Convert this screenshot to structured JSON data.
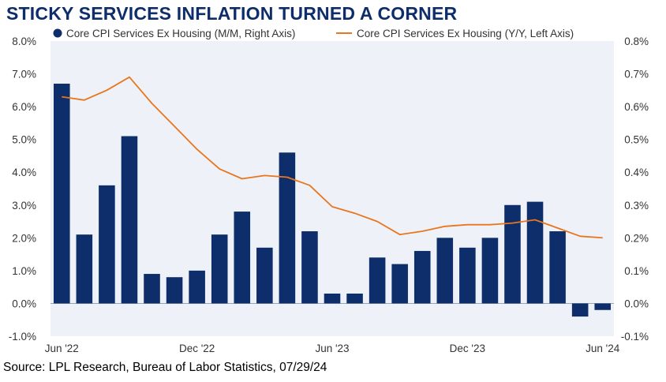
{
  "title": "STICKY SERVICES INFLATION TURNED A CORNER",
  "source": "Source: LPL Research, Bureau of Labor Statistics, 07/29/24",
  "colors": {
    "bar": "#0d2d6b",
    "line": "#e8761e",
    "title": "#0d2d6b",
    "plot_bg": "#eef2f8"
  },
  "chart_data": {
    "type": "bar",
    "x": [
      "Jun '22",
      "Jul '22",
      "Aug '22",
      "Sep '22",
      "Oct '22",
      "Nov '22",
      "Dec '22",
      "Jan '23",
      "Feb '23",
      "Mar '23",
      "Apr '23",
      "May '23",
      "Jun '23",
      "Jul '23",
      "Aug '23",
      "Sep '23",
      "Oct '23",
      "Nov '23",
      "Dec '23",
      "Jan '24",
      "Feb '24",
      "Mar '24",
      "Apr '24",
      "May '24",
      "Jun '24"
    ],
    "x_tick_labels": [
      "Jun '22",
      "Dec '22",
      "Jun '23",
      "Dec '23",
      "Jun '24"
    ],
    "x_tick_indices": [
      0,
      6,
      12,
      18,
      24
    ],
    "series": [
      {
        "name": "Core CPI Services Ex Housing (M/M, Right Axis)",
        "type": "bar",
        "axis": "right",
        "values": [
          0.67,
          0.21,
          0.36,
          0.51,
          0.09,
          0.08,
          0.1,
          0.21,
          0.28,
          0.17,
          0.46,
          0.22,
          0.03,
          0.03,
          0.14,
          0.12,
          0.16,
          0.2,
          0.17,
          0.2,
          0.3,
          0.31,
          0.22,
          -0.04,
          -0.02
        ]
      },
      {
        "name": "Core CPI Services Ex Housing (Y/Y, Left Axis)",
        "type": "line",
        "axis": "left",
        "values": [
          6.3,
          6.2,
          6.5,
          6.9,
          6.1,
          5.4,
          4.7,
          4.1,
          3.8,
          3.9,
          3.85,
          3.6,
          2.95,
          2.75,
          2.5,
          2.1,
          2.2,
          2.35,
          2.4,
          2.4,
          2.45,
          2.55,
          2.3,
          2.05,
          2.0
        ]
      }
    ],
    "left_axis": {
      "ylim": [
        -1.0,
        8.0
      ],
      "ticks": [
        "8.0%",
        "7.0%",
        "6.0%",
        "5.0%",
        "4.0%",
        "3.0%",
        "2.0%",
        "1.0%",
        "0.0%",
        "-1.0%"
      ]
    },
    "right_axis": {
      "ylim": [
        -0.1,
        0.8
      ],
      "ticks": [
        "0.8%",
        "0.7%",
        "0.6%",
        "0.5%",
        "0.4%",
        "0.3%",
        "0.2%",
        "0.1%",
        "0.0%",
        "-0.1%"
      ]
    },
    "legend_position": "top",
    "grid": false
  }
}
